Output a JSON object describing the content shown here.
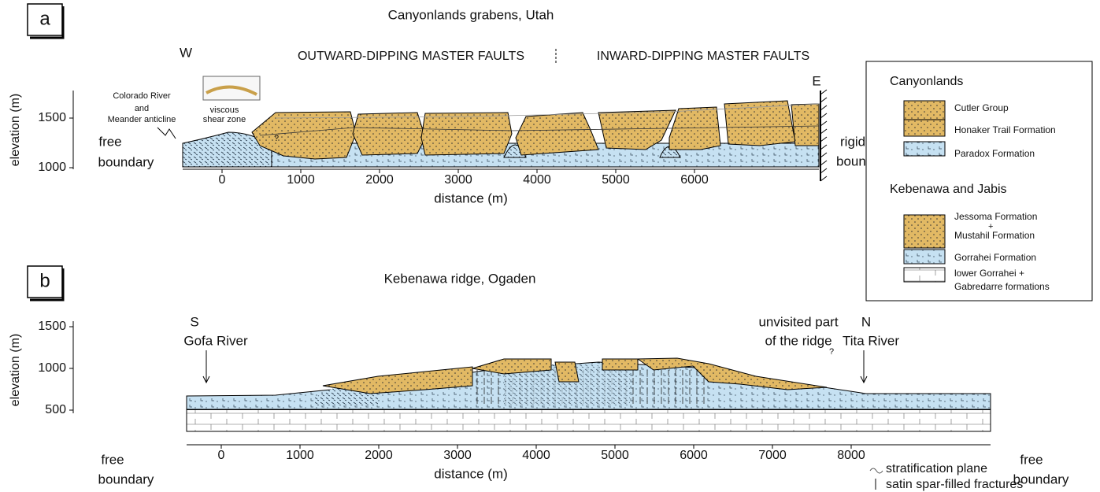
{
  "panels": [
    {
      "label": "a",
      "title": "Canyonlands grabens, Utah",
      "headings": [
        "W",
        "OUTWARD-DIPPING MASTER FAULTS",
        "INWARD-DIPPING MASTER FAULTS",
        "E"
      ],
      "notes": [
        "Colorado River",
        "and",
        "Meander anticline",
        "viscous",
        "shear zone",
        "?",
        "free",
        "boundary",
        "rigid",
        "boundary"
      ],
      "x_axis": {
        "label": "distance (m)",
        "ticks": [
          0,
          1000,
          2000,
          3000,
          4000,
          5000,
          6000
        ]
      },
      "y_axis": {
        "label": "elevation (m)",
        "ticks": [
          1000,
          1500
        ]
      }
    },
    {
      "label": "b",
      "title": "Kebenawa ridge, Ogaden",
      "headings": [
        "S",
        "Gofa River",
        "unvisited part",
        "of the ridge",
        "?",
        "N",
        "Tita River"
      ],
      "notes": [
        "free",
        "boundary",
        "free",
        "boundary"
      ],
      "x_axis": {
        "label": "distance (m)",
        "ticks": [
          0,
          1000,
          2000,
          3000,
          4000,
          5000,
          6000,
          7000,
          8000
        ]
      },
      "y_axis": {
        "label": "elevation (m)",
        "ticks": [
          500,
          1000,
          1500
        ]
      }
    }
  ],
  "legend": {
    "groups": [
      {
        "title": "Canyonlands",
        "items": [
          "Cutler Group",
          "Honaker Trail Formation",
          "Paradox Formation"
        ]
      },
      {
        "title": "Kebenawa and Jabis",
        "items": [
          "Jessoma Formation",
          "+",
          "Mustahil Formation",
          "Gorrahei Formation",
          "lower Gorrahei +",
          "Gabredarre formations"
        ]
      }
    ]
  },
  "symbols": [
    "stratification plane",
    "satin spar-filled fractures"
  ]
}
